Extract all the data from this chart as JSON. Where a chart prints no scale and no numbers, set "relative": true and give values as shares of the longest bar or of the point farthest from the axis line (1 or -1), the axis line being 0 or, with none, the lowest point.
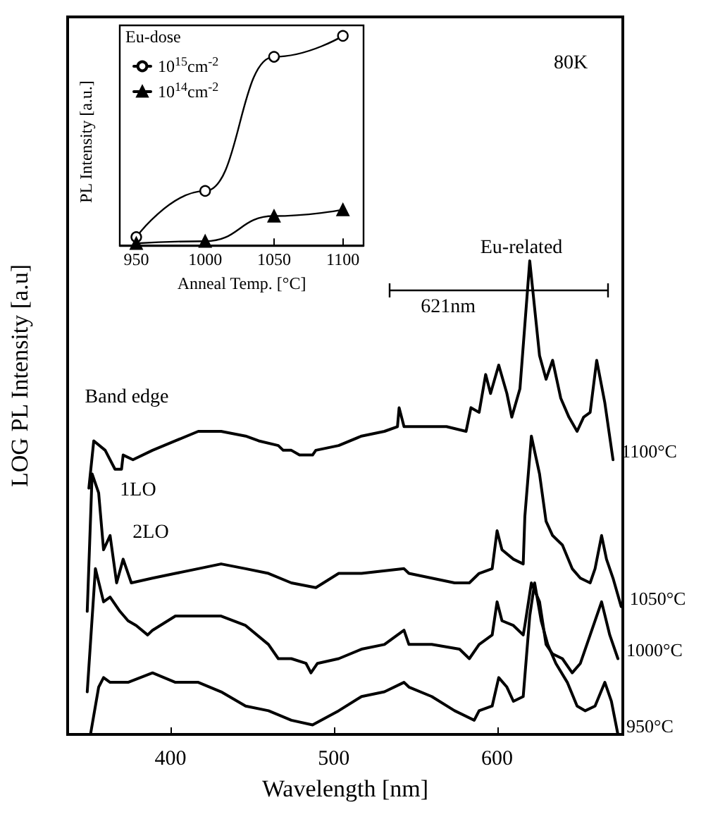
{
  "chart_data": [
    {
      "type": "line",
      "xlabel": "Wavelength [nm]",
      "ylabel": "LOG PL Intensity [a.u]",
      "xlim": [
        337,
        677
      ],
      "xticks": [
        400,
        500,
        600
      ],
      "relative": true,
      "marker": "none",
      "legend": false,
      "grid": false,
      "annotations": [
        "80K",
        "Band edge",
        "1LO",
        "2LO",
        "621nm",
        "Eu-related"
      ],
      "series": [
        {
          "name": "1100°C",
          "color": "#000000",
          "x": [
            350,
            353,
            360,
            366,
            370,
            371,
            377,
            389,
            403,
            417,
            431,
            446,
            454,
            466,
            469,
            474,
            479,
            487,
            489,
            503,
            517,
            531,
            539,
            540,
            543,
            557,
            569,
            581,
            584,
            589,
            593,
            596,
            601,
            606,
            609,
            614,
            620,
            626,
            630,
            634,
            639,
            644,
            649,
            653,
            657,
            661,
            666,
            671
          ],
          "values": [
            0.52,
            0.62,
            0.6,
            0.56,
            0.56,
            0.59,
            0.58,
            0.6,
            0.62,
            0.64,
            0.64,
            0.63,
            0.62,
            0.61,
            0.6,
            0.6,
            0.59,
            0.59,
            0.6,
            0.61,
            0.63,
            0.64,
            0.65,
            0.69,
            0.65,
            0.65,
            0.65,
            0.64,
            0.69,
            0.68,
            0.76,
            0.72,
            0.78,
            0.72,
            0.67,
            0.73,
            1.0,
            0.8,
            0.75,
            0.79,
            0.71,
            0.67,
            0.64,
            0.67,
            0.68,
            0.79,
            0.7,
            0.58
          ]
        },
        {
          "name": "1050°C",
          "color": "#000000",
          "x": [
            349,
            352,
            356,
            359,
            363,
            367,
            371,
            376,
            389,
            403,
            417,
            431,
            446,
            460,
            474,
            489,
            503,
            517,
            543,
            546,
            560,
            574,
            583,
            589,
            597,
            600,
            603,
            610,
            616,
            617,
            621,
            626,
            630,
            634,
            640,
            646,
            651,
            657,
            660,
            664,
            667,
            671,
            676
          ],
          "values": [
            0.26,
            0.55,
            0.51,
            0.39,
            0.42,
            0.32,
            0.37,
            0.32,
            0.33,
            0.34,
            0.35,
            0.36,
            0.35,
            0.34,
            0.32,
            0.31,
            0.34,
            0.34,
            0.35,
            0.34,
            0.33,
            0.32,
            0.32,
            0.34,
            0.35,
            0.43,
            0.39,
            0.37,
            0.36,
            0.46,
            0.63,
            0.55,
            0.45,
            0.42,
            0.4,
            0.35,
            0.33,
            0.32,
            0.35,
            0.42,
            0.37,
            0.33,
            0.27
          ]
        },
        {
          "name": "1000°C",
          "color": "#000000",
          "x": [
            349,
            354,
            359,
            363,
            369,
            374,
            379,
            386,
            389,
            403,
            417,
            431,
            446,
            460,
            466,
            474,
            483,
            486,
            490,
            503,
            517,
            531,
            543,
            546,
            560,
            577,
            583,
            589,
            597,
            600,
            603,
            610,
            616,
            617,
            621,
            626,
            630,
            634,
            640,
            646,
            651,
            657,
            664,
            669,
            674
          ],
          "values": [
            0.09,
            0.35,
            0.28,
            0.29,
            0.26,
            0.24,
            0.23,
            0.21,
            0.22,
            0.25,
            0.25,
            0.25,
            0.23,
            0.19,
            0.16,
            0.16,
            0.15,
            0.13,
            0.15,
            0.16,
            0.18,
            0.19,
            0.22,
            0.19,
            0.19,
            0.18,
            0.16,
            0.19,
            0.21,
            0.28,
            0.24,
            0.23,
            0.21,
            0.23,
            0.32,
            0.28,
            0.19,
            0.17,
            0.16,
            0.13,
            0.15,
            0.21,
            0.28,
            0.21,
            0.16
          ]
        },
        {
          "name": "950°C",
          "color": "#000000",
          "x": [
            351,
            356,
            359,
            363,
            374,
            389,
            403,
            417,
            431,
            446,
            460,
            474,
            487,
            503,
            517,
            531,
            543,
            546,
            560,
            574,
            586,
            589,
            597,
            601,
            606,
            610,
            616,
            620,
            623,
            627,
            631,
            636,
            643,
            649,
            654,
            660,
            666,
            670,
            674
          ],
          "values": [
            0,
            0.1,
            0.12,
            0.11,
            0.11,
            0.13,
            0.11,
            0.11,
            0.09,
            0.06,
            0.05,
            0.03,
            0.02,
            0.05,
            0.08,
            0.09,
            0.11,
            0.1,
            0.08,
            0.05,
            0.03,
            0.05,
            0.06,
            0.12,
            0.1,
            0.07,
            0.08,
            0.25,
            0.32,
            0.24,
            0.19,
            0.15,
            0.11,
            0.06,
            0.05,
            0.06,
            0.11,
            0.07,
            0
          ]
        }
      ]
    },
    {
      "type": "line",
      "xlabel": "Anneal Temp. [°C]",
      "ylabel": "PL Intensity [a.u.]",
      "legend_title": "Eu-dose",
      "legend": "top left",
      "xlim": [
        938,
        1115
      ],
      "xticks": [
        950,
        1000,
        1050,
        1100
      ],
      "relative": true,
      "grid": false,
      "series": [
        {
          "name": "10$^{15}$cm$^{-2}$",
          "color": "#000000",
          "marker": "circle",
          "x": [
            950,
            1000,
            1050,
            1100
          ],
          "values": [
            0.04,
            0.26,
            0.9,
            1
          ]
        },
        {
          "name": "10$^{14}$cm$^{-2}$",
          "color": "#000000",
          "marker": "triangle",
          "x": [
            950,
            1000,
            1050,
            1100
          ],
          "values": [
            0.01,
            0.02,
            0.14,
            0.17
          ]
        }
      ]
    }
  ]
}
